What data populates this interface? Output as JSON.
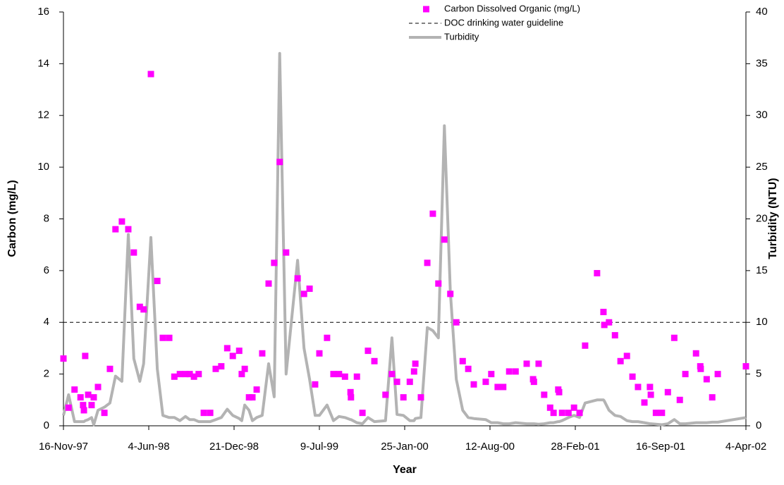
{
  "chart_data": {
    "type": "scatter-line",
    "x_label": "Year",
    "y_label": "Carbon (mg/L)",
    "y2_label": "Turbidity (NTU)",
    "xlim": [
      "1997-11-16",
      "2002-04-04"
    ],
    "xticks": [
      {
        "value": "1997-11-16",
        "label": "16-Nov-97"
      },
      {
        "value": "1998-06-04",
        "label": "4-Jun-98"
      },
      {
        "value": "1998-12-21",
        "label": "21-Dec-98"
      },
      {
        "value": "1999-07-09",
        "label": "9-Jul-99"
      },
      {
        "value": "2000-01-25",
        "label": "25-Jan-00"
      },
      {
        "value": "2000-08-12",
        "label": "12-Aug-00"
      },
      {
        "value": "2001-02-28",
        "label": "28-Feb-01"
      },
      {
        "value": "2001-09-16",
        "label": "16-Sep-01"
      },
      {
        "value": "2002-04-04",
        "label": "4-Apr-02"
      }
    ],
    "ylim": [
      0,
      16
    ],
    "yticks": [
      0,
      2,
      4,
      6,
      8,
      10,
      12,
      14,
      16
    ],
    "y2lim": [
      0,
      40
    ],
    "y2ticks": [
      0,
      5,
      10,
      15,
      20,
      25,
      30,
      35,
      40
    ],
    "legend": "top-right",
    "x": [
      "1997-11-16",
      "1997-11-28",
      "1997-12-12",
      "1997-12-26",
      "1998-01-01",
      "1998-01-03",
      "1998-01-06",
      "1998-01-13",
      "1998-01-21",
      "1998-01-26",
      "1998-02-05",
      "1998-02-20",
      "1998-03-05",
      "1998-03-18",
      "1998-04-02",
      "1998-04-17",
      "1998-04-30",
      "1998-05-14",
      "1998-05-23",
      "1998-06-09",
      "1998-06-24",
      "1998-07-07",
      "1998-07-22",
      "1998-08-03",
      "1998-08-16",
      "1998-08-29",
      "1998-09-08",
      "1998-09-18",
      "1998-09-29",
      "1998-10-11",
      "1998-10-26",
      "1998-11-08",
      "1998-11-21",
      "1998-12-05",
      "1998-12-18",
      "1999-01-02",
      "1999-01-08",
      "1999-01-15",
      "1999-01-25",
      "1999-02-02",
      "1999-02-12",
      "1999-02-25",
      "1999-03-12",
      "1999-03-25",
      "1999-04-07",
      "1999-04-22",
      "1999-05-19",
      "1999-06-03",
      "1999-06-16",
      "1999-06-29",
      "1999-07-09",
      "1999-07-27",
      "1999-08-11",
      "1999-08-24",
      "1999-09-07",
      "1999-09-20",
      "1999-09-21",
      "1999-10-05",
      "1999-10-18",
      "1999-10-31",
      "1999-11-15",
      "1999-12-11",
      "1999-12-26",
      "2000-01-07",
      "2000-01-22",
      "2000-02-06",
      "2000-02-16",
      "2000-02-19",
      "2000-03-03",
      "2000-03-18",
      "2000-03-31",
      "2000-04-13",
      "2000-04-27",
      "2000-05-11",
      "2000-05-25",
      "2000-06-09",
      "2000-06-22",
      "2000-07-05",
      "2000-08-02",
      "2000-08-15",
      "2000-08-30",
      "2000-09-12",
      "2000-09-26",
      "2000-10-11",
      "2000-11-06",
      "2000-11-21",
      "2000-11-23",
      "2000-12-04",
      "2000-12-17",
      "2000-12-31",
      "2001-01-08",
      "2001-01-19",
      "2001-01-21",
      "2001-01-28",
      "2001-02-12",
      "2001-02-25",
      "2001-03-10",
      "2001-03-23",
      "2001-04-20",
      "2001-05-05",
      "2001-05-07",
      "2001-05-18",
      "2001-06-01",
      "2001-06-14",
      "2001-06-29",
      "2001-07-12",
      "2001-07-25",
      "2001-08-09",
      "2001-08-22",
      "2001-08-24",
      "2001-09-05",
      "2001-09-19",
      "2001-10-03",
      "2001-10-18",
      "2001-10-31",
      "2001-11-13",
      "2001-12-08",
      "2001-12-18",
      "2001-12-19",
      "2002-01-02",
      "2002-01-15",
      "2002-01-28",
      "2002-04-04"
    ],
    "series": [
      {
        "name": "Carbon Dissolved Organic (mg/L)",
        "color": "#ff00ff",
        "marker": "square",
        "values": [
          2.6,
          0.7,
          1.4,
          1.1,
          0.8,
          0.6,
          2.7,
          1.2,
          0.8,
          1.1,
          1.5,
          0.5,
          2.2,
          7.6,
          7.9,
          7.6,
          6.7,
          4.6,
          4.5,
          13.6,
          5.6,
          3.4,
          3.4,
          1.9,
          2.0,
          2.0,
          2.0,
          1.9,
          2.0,
          0.5,
          0.5,
          2.2,
          2.3,
          3.0,
          2.7,
          2.9,
          2.0,
          2.2,
          1.1,
          1.1,
          1.4,
          2.8,
          5.5,
          6.3,
          10.2,
          6.7,
          5.7,
          5.1,
          5.3,
          1.6,
          2.8,
          3.4,
          2.0,
          2.0,
          1.9,
          1.3,
          1.1,
          1.9,
          0.5,
          2.9,
          2.5,
          1.2,
          2.0,
          1.7,
          1.1,
          1.7,
          2.1,
          2.4,
          1.1,
          6.3,
          8.2,
          5.5,
          7.2,
          5.1,
          4.0,
          2.5,
          2.2,
          1.6,
          1.7,
          2.0,
          1.5,
          1.5,
          2.1,
          2.1,
          2.4,
          1.8,
          1.7,
          2.4,
          1.2,
          0.7,
          0.5,
          1.4,
          1.3,
          0.5,
          0.5,
          0.7,
          0.5,
          3.1,
          5.9,
          4.4,
          3.9,
          4.0,
          3.5,
          2.5,
          2.7,
          1.9,
          1.5,
          0.9,
          1.5,
          1.2,
          0.5,
          0.5,
          1.3,
          3.4,
          1.0,
          2.0,
          2.8,
          2.3,
          2.2,
          1.8,
          1.1,
          2.0,
          2.3
        ]
      },
      {
        "name": "Turbidity",
        "color": "#b3b3b3",
        "axis": "y2",
        "line": true,
        "values": [
          1.0,
          3.0,
          0.4,
          0.4,
          0.4,
          0.4,
          0.5,
          0.6,
          0.8,
          0.1,
          1.5,
          1.8,
          2.2,
          4.8,
          4.3,
          18.5,
          6.5,
          4.3,
          6.0,
          18.2,
          5.5,
          1.0,
          0.8,
          0.8,
          0.5,
          0.9,
          0.6,
          0.6,
          0.4,
          0.4,
          0.4,
          0.6,
          0.8,
          1.6,
          1.0,
          0.7,
          0.5,
          2.0,
          1.5,
          0.5,
          0.8,
          1.0,
          6.0,
          2.8,
          36,
          5.0,
          16,
          7.5,
          4.5,
          1.0,
          1.0,
          2.0,
          0.5,
          0.9,
          0.8,
          0.6,
          0.6,
          0.3,
          0.2,
          0.8,
          0.4,
          0.5,
          8.5,
          1.1,
          1.0,
          0.5,
          0.5,
          0.7,
          0.8,
          9.5,
          9.2,
          8.5,
          29,
          13,
          4.5,
          1.5,
          0.8,
          0.7,
          0.6,
          0.3,
          0.3,
          0.2,
          0.2,
          0.3,
          0.2,
          0.2,
          0.2,
          0.15,
          0.2,
          0.3,
          0.3,
          0.4,
          0.4,
          0.5,
          0.8,
          1.0,
          0.8,
          2.2,
          2.5,
          2.5,
          2.4,
          1.5,
          1.0,
          0.9,
          0.5,
          0.4,
          0.4,
          0.3,
          0.2,
          0.2,
          0.15,
          0.1,
          0.2,
          0.6,
          0.2,
          0.2,
          0.3,
          0.3,
          0.3,
          0.3,
          0.35,
          0.35,
          0.8
        ]
      }
    ],
    "guideline": {
      "name": "DOC drinking water guideline",
      "value": 4,
      "color": "#000000"
    }
  }
}
